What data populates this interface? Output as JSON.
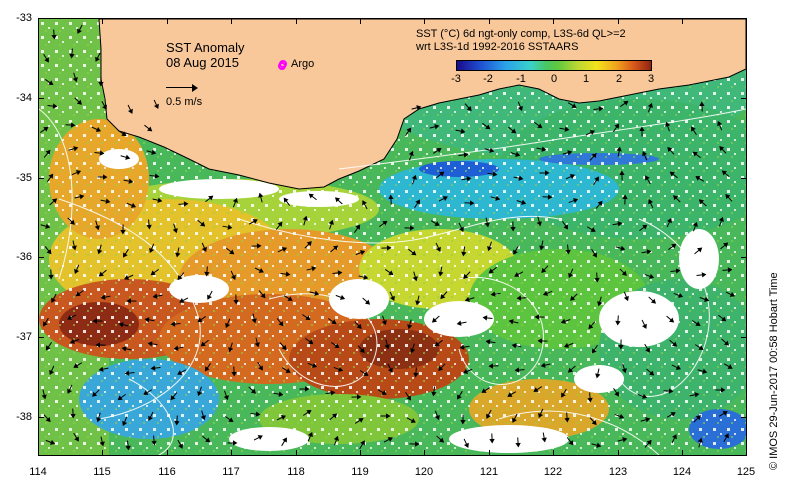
{
  "map": {
    "title": "SST Anomaly",
    "date": "08 Aug 2015",
    "argo_label": "Argo",
    "vector_scale_label": "0.5 m/s",
    "colorbar_title_line1": "SST (°C) 6d ngt-only comp, L3S-6d QL>=2",
    "colorbar_title_line2": "wrt L3S-1d 1992-2016 SSTAARS",
    "colorbar_ticks": [
      "-3",
      "-2",
      "-1",
      "0",
      "1",
      "2",
      "3"
    ],
    "lat_labels": [
      "-33",
      "-34",
      "-35",
      "-36",
      "-37",
      "-38"
    ],
    "lon_labels": [
      "114",
      "115",
      "116",
      "117",
      "118",
      "119",
      "120",
      "121",
      "122",
      "123",
      "124",
      "125"
    ],
    "credit": "© IMOS 29-Jun-2017 00:58 Hobart Time",
    "lon_range": [
      114,
      125
    ],
    "lat_range": [
      -38.5,
      -33
    ],
    "anomaly_range": [
      -3,
      3
    ]
  },
  "colors": {
    "land": "#f8c89a",
    "argo": "#ff00ff",
    "contour": "#ffffff",
    "arrow": "#000000"
  }
}
